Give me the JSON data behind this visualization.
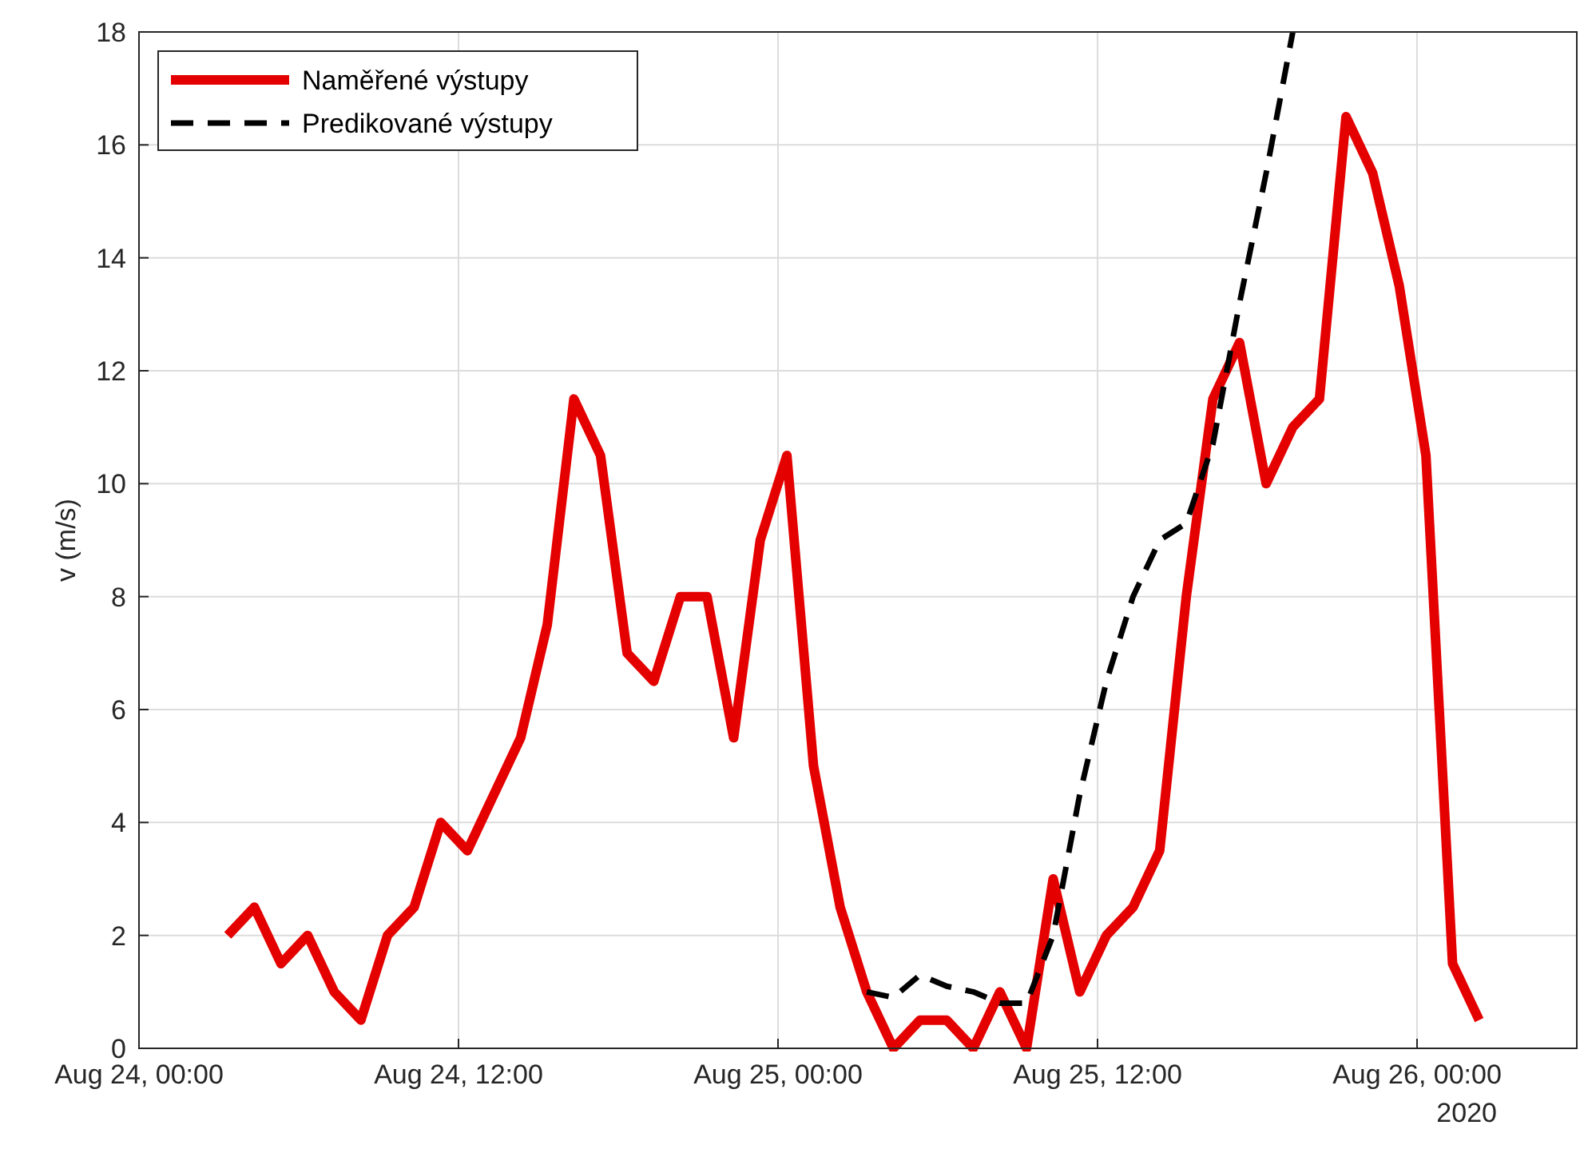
{
  "chart_data": {
    "type": "line",
    "ylabel": "v (m/s)",
    "annotations": [
      "2020"
    ],
    "xlim": [
      "2020-08-24T00:00",
      "2020-08-26T06:00"
    ],
    "xticks": [
      {
        "value": "2020-08-24T00:00",
        "label": "Aug 24, 00:00"
      },
      {
        "value": "2020-08-24T12:00",
        "label": "Aug 24, 12:00"
      },
      {
        "value": "2020-08-25T00:00",
        "label": "Aug 25, 00:00"
      },
      {
        "value": "2020-08-25T12:00",
        "label": "Aug 25, 12:00"
      },
      {
        "value": "2020-08-26T00:00",
        "label": "Aug 26, 00:00"
      }
    ],
    "ylim": [
      0,
      18
    ],
    "yticks": [
      0,
      2,
      4,
      6,
      8,
      10,
      12,
      14,
      16,
      18
    ],
    "grid": true,
    "legend": "top left",
    "series": [
      {
        "name": "Naměřené výstupy",
        "color": "#e50000",
        "line_style": "solid",
        "x": [
          "2020-08-24T03:20",
          "2020-08-24T04:20",
          "2020-08-24T05:20",
          "2020-08-24T06:20",
          "2020-08-24T07:20",
          "2020-08-24T08:20",
          "2020-08-24T09:20",
          "2020-08-24T10:20",
          "2020-08-24T11:20",
          "2020-08-24T12:20",
          "2020-08-24T13:20",
          "2020-08-24T14:20",
          "2020-08-24T15:20",
          "2020-08-24T16:20",
          "2020-08-24T17:20",
          "2020-08-24T18:20",
          "2020-08-24T19:20",
          "2020-08-24T20:20",
          "2020-08-24T21:20",
          "2020-08-24T22:20",
          "2020-08-24T23:20",
          "2020-08-25T00:20",
          "2020-08-25T01:20",
          "2020-08-25T02:20",
          "2020-08-25T03:20",
          "2020-08-25T04:20",
          "2020-08-25T05:20",
          "2020-08-25T06:20",
          "2020-08-25T07:20",
          "2020-08-25T08:20",
          "2020-08-25T09:20",
          "2020-08-25T10:20",
          "2020-08-25T11:20",
          "2020-08-25T12:20",
          "2020-08-25T13:20",
          "2020-08-25T14:20",
          "2020-08-25T15:20",
          "2020-08-25T16:20",
          "2020-08-25T17:20",
          "2020-08-25T18:20",
          "2020-08-25T19:20",
          "2020-08-25T20:20",
          "2020-08-25T21:20",
          "2020-08-25T22:20",
          "2020-08-25T23:20",
          "2020-08-26T00:20",
          "2020-08-26T01:20",
          "2020-08-26T02:20"
        ],
        "values": [
          2.0,
          2.5,
          1.5,
          2.0,
          1.0,
          0.5,
          2.0,
          2.5,
          4.0,
          3.5,
          4.5,
          5.5,
          7.5,
          11.5,
          10.5,
          7.0,
          6.5,
          8.0,
          8.0,
          5.5,
          9.0,
          10.5,
          5.0,
          2.5,
          1.0,
          0,
          0.5,
          0.5,
          0,
          1.0,
          0,
          3.0,
          1.0,
          2.0,
          2.5,
          3.5,
          8.0,
          11.5,
          12.5,
          10.0,
          11.0,
          11.5,
          16.5,
          15.5,
          13.5,
          10.5,
          1.5,
          0.5
        ]
      },
      {
        "name": "Predikované výstupy",
        "color": "#000000",
        "line_style": "dashed",
        "x": [
          "2020-08-25T03:20",
          "2020-08-25T04:20",
          "2020-08-25T05:20",
          "2020-08-25T06:20",
          "2020-08-25T07:20",
          "2020-08-25T08:20",
          "2020-08-25T09:20",
          "2020-08-25T10:20",
          "2020-08-25T11:20",
          "2020-08-25T12:20",
          "2020-08-25T13:20",
          "2020-08-25T14:20",
          "2020-08-25T15:20",
          "2020-08-25T16:20",
          "2020-08-25T17:20",
          "2020-08-25T18:20",
          "2020-08-25T19:20"
        ],
        "values": [
          1.0,
          0.9,
          1.3,
          1.1,
          1.0,
          0.8,
          0.8,
          2.0,
          4.5,
          6.5,
          8.0,
          9.0,
          9.3,
          10.7,
          13.2,
          15.5,
          18.0
        ]
      }
    ]
  }
}
